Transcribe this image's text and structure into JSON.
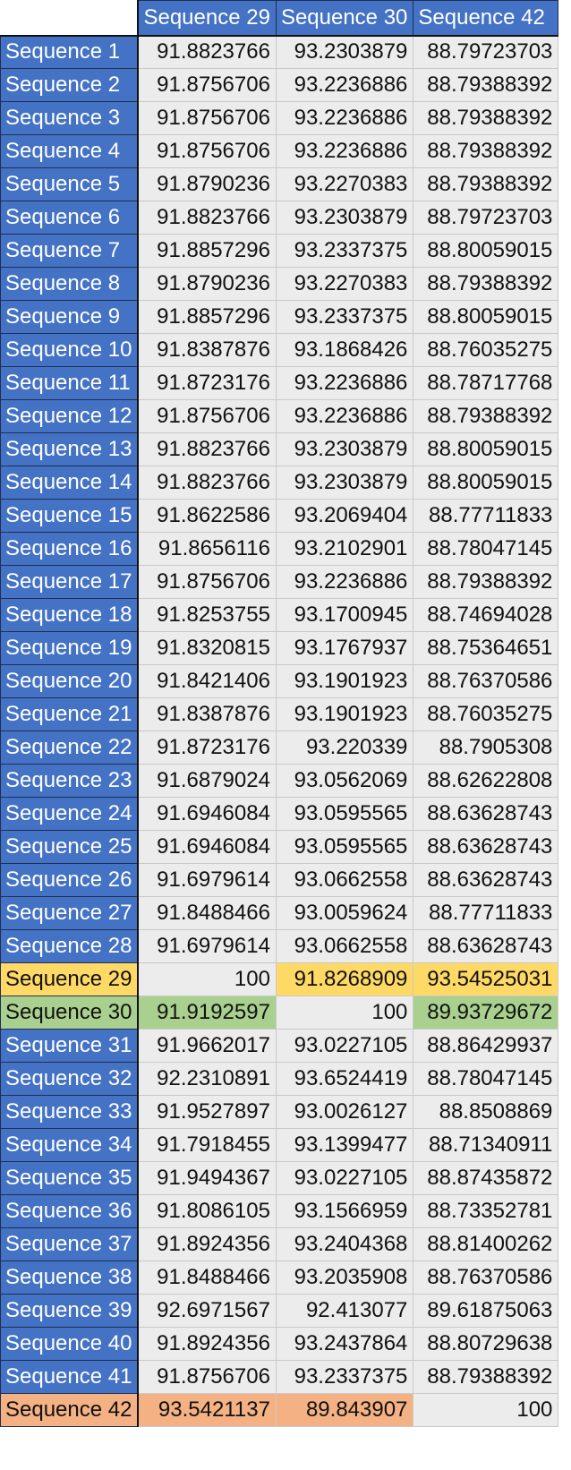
{
  "columns": [
    "Sequence 29",
    "Sequence 30",
    "Sequence 42"
  ],
  "rows": [
    {
      "label": "Sequence 1",
      "values": [
        "91.8823766",
        "93.2303879",
        "88.79723703"
      ]
    },
    {
      "label": "Sequence 2",
      "values": [
        "91.8756706",
        "93.2236886",
        "88.79388392"
      ]
    },
    {
      "label": "Sequence 3",
      "values": [
        "91.8756706",
        "93.2236886",
        "88.79388392"
      ]
    },
    {
      "label": "Sequence 4",
      "values": [
        "91.8756706",
        "93.2236886",
        "88.79388392"
      ]
    },
    {
      "label": "Sequence 5",
      "values": [
        "91.8790236",
        "93.2270383",
        "88.79388392"
      ]
    },
    {
      "label": "Sequence 6",
      "values": [
        "91.8823766",
        "93.2303879",
        "88.79723703"
      ]
    },
    {
      "label": "Sequence 7",
      "values": [
        "91.8857296",
        "93.2337375",
        "88.80059015"
      ]
    },
    {
      "label": "Sequence 8",
      "values": [
        "91.8790236",
        "93.2270383",
        "88.79388392"
      ]
    },
    {
      "label": "Sequence 9",
      "values": [
        "91.8857296",
        "93.2337375",
        "88.80059015"
      ]
    },
    {
      "label": "Sequence 10",
      "values": [
        "91.8387876",
        "93.1868426",
        "88.76035275"
      ]
    },
    {
      "label": "Sequence 11",
      "values": [
        "91.8723176",
        "93.2236886",
        "88.78717768"
      ]
    },
    {
      "label": "Sequence 12",
      "values": [
        "91.8756706",
        "93.2236886",
        "88.79388392"
      ]
    },
    {
      "label": "Sequence 13",
      "values": [
        "91.8823766",
        "93.2303879",
        "88.80059015"
      ]
    },
    {
      "label": "Sequence 14",
      "values": [
        "91.8823766",
        "93.2303879",
        "88.80059015"
      ]
    },
    {
      "label": "Sequence 15",
      "values": [
        "91.8622586",
        "93.2069404",
        "88.77711833"
      ]
    },
    {
      "label": "Sequence 16",
      "values": [
        "91.8656116",
        "93.2102901",
        "88.78047145"
      ]
    },
    {
      "label": "Sequence 17",
      "values": [
        "91.8756706",
        "93.2236886",
        "88.79388392"
      ]
    },
    {
      "label": "Sequence 18",
      "values": [
        "91.8253755",
        "93.1700945",
        "88.74694028"
      ]
    },
    {
      "label": "Sequence 19",
      "values": [
        "91.8320815",
        "93.1767937",
        "88.75364651"
      ]
    },
    {
      "label": "Sequence 20",
      "values": [
        "91.8421406",
        "93.1901923",
        "88.76370586"
      ]
    },
    {
      "label": "Sequence 21",
      "values": [
        "91.8387876",
        "93.1901923",
        "88.76035275"
      ]
    },
    {
      "label": "Sequence 22",
      "values": [
        "91.8723176",
        "93.220339",
        "88.7905308"
      ]
    },
    {
      "label": "Sequence 23",
      "values": [
        "91.6879024",
        "93.0562069",
        "88.62622808"
      ]
    },
    {
      "label": "Sequence 24",
      "values": [
        "91.6946084",
        "93.0595565",
        "88.63628743"
      ]
    },
    {
      "label": "Sequence 25",
      "values": [
        "91.6946084",
        "93.0595565",
        "88.63628743"
      ]
    },
    {
      "label": "Sequence 26",
      "values": [
        "91.6979614",
        "93.0662558",
        "88.63628743"
      ]
    },
    {
      "label": "Sequence 27",
      "values": [
        "91.8488466",
        "93.0059624",
        "88.77711833"
      ]
    },
    {
      "label": "Sequence 28",
      "values": [
        "91.6979614",
        "93.0662558",
        "88.63628743"
      ]
    },
    {
      "label": "Sequence 29",
      "values": [
        "100",
        "91.8268909",
        "93.54525031"
      ],
      "highlight": "yellow"
    },
    {
      "label": "Sequence 30",
      "values": [
        "91.9192597",
        "100",
        "89.93729672"
      ],
      "highlight": "green"
    },
    {
      "label": "Sequence 31",
      "values": [
        "91.9662017",
        "93.0227105",
        "88.86429937"
      ]
    },
    {
      "label": "Sequence 32",
      "values": [
        "92.2310891",
        "93.6524419",
        "88.78047145"
      ]
    },
    {
      "label": "Sequence 33",
      "values": [
        "91.9527897",
        "93.0026127",
        "88.8508869"
      ]
    },
    {
      "label": "Sequence 34",
      "values": [
        "91.7918455",
        "93.1399477",
        "88.71340911"
      ]
    },
    {
      "label": "Sequence 35",
      "values": [
        "91.9494367",
        "93.0227105",
        "88.87435872"
      ]
    },
    {
      "label": "Sequence 36",
      "values": [
        "91.8086105",
        "93.1566959",
        "88.73352781"
      ]
    },
    {
      "label": "Sequence 37",
      "values": [
        "91.8924356",
        "93.2404368",
        "88.81400262"
      ]
    },
    {
      "label": "Sequence 38",
      "values": [
        "91.8488466",
        "93.2035908",
        "88.76370586"
      ]
    },
    {
      "label": "Sequence 39",
      "values": [
        "92.6971567",
        "92.413077",
        "89.61875063"
      ]
    },
    {
      "label": "Sequence 40",
      "values": [
        "91.8924356",
        "93.2437864",
        "88.80729638"
      ]
    },
    {
      "label": "Sequence 41",
      "values": [
        "91.8756706",
        "93.2337375",
        "88.79388392"
      ]
    },
    {
      "label": "Sequence 42",
      "values": [
        "93.5421137",
        "89.843907",
        "100"
      ],
      "highlight": "orange"
    }
  ],
  "highlight_colors": {
    "header": "#4472c4",
    "yellow": "#ffd966",
    "green": "#a9d08e",
    "orange": "#f4b183"
  }
}
